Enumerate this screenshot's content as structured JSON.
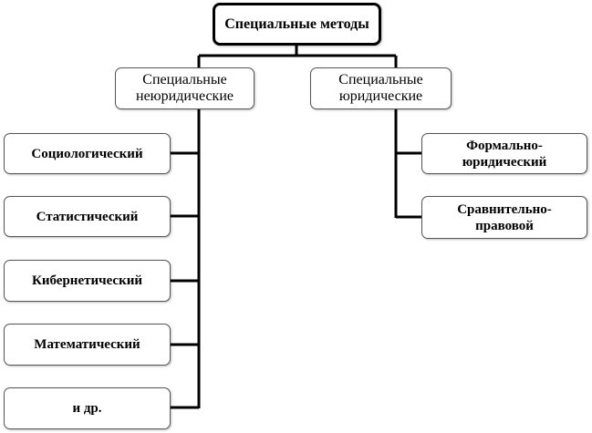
{
  "root": "Специальные методы",
  "groups": [
    {
      "label": "Специальные неюридические",
      "items": [
        "Социологический",
        "Статистический",
        "Кибернетический",
        "Математический",
        "и др."
      ]
    },
    {
      "label": "Специальные юридические",
      "items": [
        "Формально-юридический",
        "Сравнительно-правовой"
      ]
    }
  ]
}
